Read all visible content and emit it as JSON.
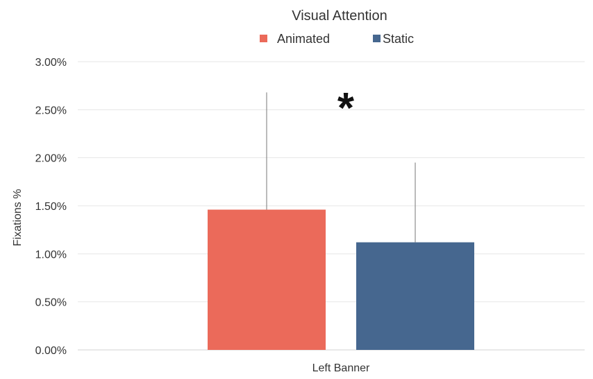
{
  "chart_data": {
    "type": "bar",
    "title": "Visual Attention",
    "categories": [
      "Left Banner"
    ],
    "series": [
      {
        "name": "Animated",
        "values": [
          1.46
        ],
        "error_upper": [
          2.68
        ],
        "color": "#EB6A5A"
      },
      {
        "name": "Static",
        "values": [
          1.12
        ],
        "error_upper": [
          1.95
        ],
        "color": "#46678F"
      }
    ],
    "xlabel": "",
    "ylabel": "Fixations %",
    "ylim": [
      0,
      3
    ],
    "y_ticks": [
      "0.00%",
      "0.50%",
      "1.00%",
      "1.50%",
      "2.00%",
      "2.50%",
      "3.00%"
    ],
    "y_tick_values": [
      0,
      0.5,
      1.0,
      1.5,
      2.0,
      2.5,
      3.0
    ],
    "annotation": "*",
    "grid": true,
    "legend_placement": "top-center"
  }
}
